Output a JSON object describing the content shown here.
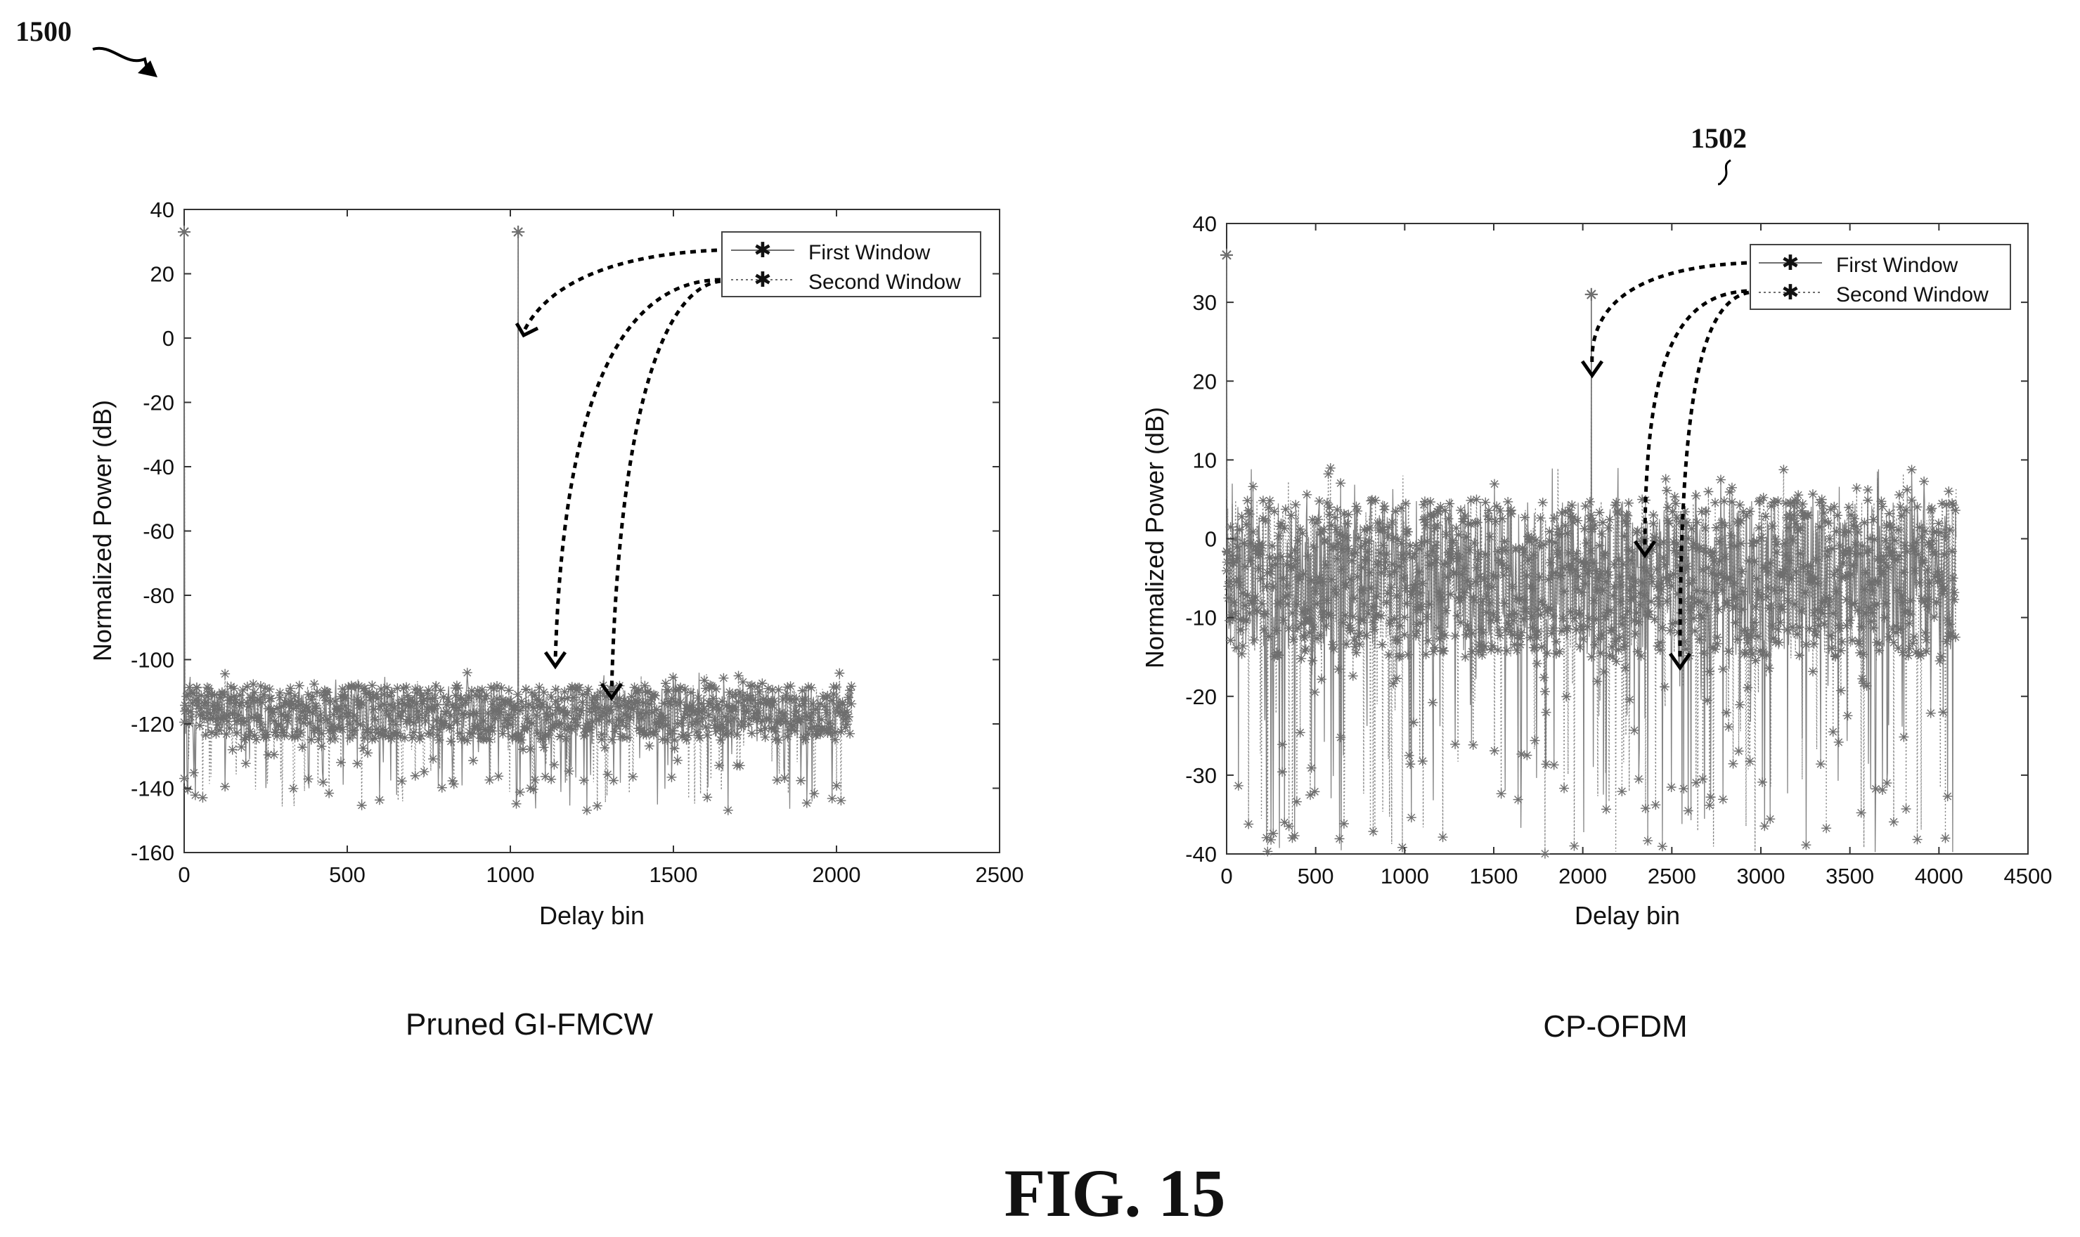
{
  "figure": {
    "ref_number": "1500",
    "ref_number_right": "1502",
    "caption": "FIG. 15",
    "colors": {
      "marker": "#6e6e6e",
      "axis": "#222222",
      "annotation": "#000000"
    }
  },
  "chart_data": [
    {
      "type": "line",
      "title": "Pruned GI-FMCW",
      "xlabel": "Delay bin",
      "ylabel": "Normalized Power (dB)",
      "xlim": [
        0,
        2500
      ],
      "ylim": [
        -160,
        40
      ],
      "xticks": [
        0,
        500,
        1000,
        1500,
        2000,
        2500
      ],
      "yticks": [
        40,
        20,
        0,
        -20,
        -40,
        -60,
        -80,
        -100,
        -120,
        -140,
        -160
      ],
      "grid": false,
      "legend_position": "top-right",
      "marker": "asterisk",
      "series": [
        {
          "name": "First Window",
          "line_style": "solid"
        },
        {
          "name": "Second Window",
          "line_style": "dotted"
        }
      ],
      "description_of_data": {
        "x_range": [
          0,
          2048
        ],
        "noise_floor_band": [
          -125,
          -108
        ],
        "noise_dips_min": -147,
        "peaks": [
          {
            "x": 0,
            "y": 33
          },
          {
            "x": 1024,
            "y": 33
          }
        ]
      }
    },
    {
      "type": "line",
      "title": "CP-OFDM",
      "xlabel": "Delay bin",
      "ylabel": "Normalized Power (dB)",
      "xlim": [
        0,
        4500
      ],
      "ylim": [
        -40,
        40
      ],
      "xticks": [
        0,
        500,
        1000,
        1500,
        2000,
        2500,
        3000,
        3500,
        4000,
        4500
      ],
      "yticks": [
        40,
        30,
        20,
        10,
        0,
        -10,
        -20,
        -30,
        -40
      ],
      "grid": false,
      "legend_position": "top-right",
      "marker": "asterisk",
      "series": [
        {
          "name": "First Window",
          "line_style": "solid"
        },
        {
          "name": "Second Window",
          "line_style": "dotted"
        }
      ],
      "description_of_data": {
        "x_range": [
          0,
          4096
        ],
        "noise_band": [
          -15,
          5
        ],
        "noise_dips_min": -40,
        "peaks": [
          {
            "x": 0,
            "y": 36
          },
          {
            "x": 2048,
            "y": 31
          }
        ]
      }
    }
  ]
}
